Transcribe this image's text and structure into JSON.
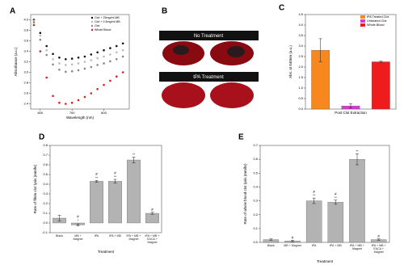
{
  "chart_data": [
    {
      "type": "scatter",
      "panel_label": "A",
      "x_label": "Wavelength (nm)",
      "y_label": "Absorbance (a.u.)",
      "x": [
        580,
        600,
        620,
        640,
        660,
        680,
        700,
        720,
        740,
        760,
        780,
        800,
        820,
        840,
        860
      ],
      "series": [
        {
          "name": "Clot + 25mg/ml MB",
          "color": "#111111",
          "values": [
            4.0,
            3.75,
            3.5,
            3.35,
            3.28,
            3.25,
            3.26,
            3.28,
            3.3,
            3.34,
            3.38,
            3.42,
            3.46,
            3.5,
            3.55
          ]
        },
        {
          "name": "Clot + 2.5mg/ml MB",
          "color": "#bbbbbb",
          "values": [
            3.98,
            3.7,
            3.42,
            3.25,
            3.17,
            3.14,
            3.15,
            3.17,
            3.2,
            3.23,
            3.27,
            3.3,
            3.34,
            3.38,
            3.42
          ]
        },
        {
          "name": "Clot",
          "color": "#888888",
          "values": [
            3.95,
            3.62,
            3.33,
            3.15,
            3.05,
            3.01,
            3.02,
            3.04,
            3.07,
            3.1,
            3.14,
            3.17,
            3.21,
            3.25,
            3.3
          ]
        },
        {
          "name": "Whole Blood",
          "color": "#d42020",
          "values": [
            3.9,
            3.4,
            2.9,
            2.55,
            2.42,
            2.4,
            2.42,
            2.47,
            2.53,
            2.6,
            2.68,
            2.76,
            2.84,
            2.92,
            3.0
          ]
        }
      ],
      "xlim": [
        570,
        880
      ],
      "xticks": [
        600,
        700,
        800
      ],
      "ylim": [
        2.3,
        4.1
      ],
      "yticks": [
        2.4,
        2.6,
        2.8,
        {
          "value": 3,
          "label": "3.0"
        },
        3.2,
        3.4,
        3.6,
        3.8,
        {
          "value": 4,
          "label": "4.0"
        }
      ]
    },
    {
      "type": "bar",
      "panel_label": "C",
      "x_label": "Post Clot Extraction",
      "y_label": "Abs. at 640nm (a.u.)",
      "series": [
        {
          "name": "tPA Treated Clot",
          "color": "#f7881f",
          "values": [
            2.8
          ],
          "errors": [
            0.55
          ]
        },
        {
          "name": "Untreated Clot",
          "color": "#d63ad6",
          "values": [
            0.15
          ],
          "errors": [
            0.1
          ]
        },
        {
          "name": "Whole Blood",
          "color": "#ee1c1c",
          "values": [
            2.25
          ],
          "errors": [
            0.03
          ]
        }
      ],
      "ylim": [
        0,
        4.5
      ],
      "yticks": [
        {
          "value": 0,
          "label": "0.0"
        },
        0.5,
        {
          "value": 1,
          "label": "1.0"
        },
        1.5,
        {
          "value": 2,
          "label": "2.0"
        },
        2.5,
        {
          "value": 3,
          "label": "3.0"
        },
        3.5,
        {
          "value": 4,
          "label": "4.0"
        },
        4.5
      ]
    },
    {
      "type": "bar",
      "panel_label": "D",
      "x_label": "Treatment",
      "y_label": "Rate of fibrin clot lysis (mm/hr)",
      "categories": [
        "Blank",
        "MB + Magnet",
        "tPA",
        "tPA + MB",
        "tPA + MB + Magnet",
        "tPA + MB + EACA + Magnet"
      ],
      "series": [
        {
          "color": "#b3b3b3",
          "values": [
            0.05,
            -0.02,
            0.43,
            0.43,
            0.65,
            0.1
          ],
          "errors": [
            0.03,
            0.01,
            0.01,
            0.02,
            0.03,
            0.01
          ]
        }
      ],
      "sig_top": [
        null,
        "#",
        "#",
        "#",
        null,
        "#"
      ],
      "sig_bottom": [
        null,
        "*",
        "**",
        "**",
        "**",
        null
      ],
      "ylim": [
        -0.1,
        0.8
      ],
      "yticks": [
        -0.1,
        {
          "value": 0,
          "label": "0.0"
        },
        0.1,
        0.2,
        0.3,
        0.4,
        0.5,
        0.6,
        0.7,
        0.8
      ]
    },
    {
      "type": "bar",
      "panel_label": "E",
      "x_label": "Treatment",
      "y_label": "Rate of whole blood clot lysis (mm/hr)",
      "categories": [
        "Blank",
        "MB + Magnet",
        "tPA",
        "tPA + MB",
        "tPA + MB + Magnet",
        "tPA + MB + EACA + Magnet"
      ],
      "series": [
        {
          "color": "#b3b3b3",
          "values": [
            0.02,
            0.01,
            0.3,
            0.29,
            0.6,
            0.02
          ],
          "errors": [
            0.005,
            0.005,
            0.02,
            0.015,
            0.04,
            0.005
          ]
        }
      ],
      "sig_top": [
        null,
        "#",
        "#",
        "#",
        null,
        "#"
      ],
      "sig_bottom": [
        null,
        null,
        "**",
        "**",
        "**",
        null
      ],
      "ylim": [
        0,
        0.7
      ],
      "yticks": [
        {
          "value": 0,
          "label": "0.0"
        },
        0.1,
        0.2,
        0.3,
        0.4,
        0.5,
        0.6,
        0.7
      ]
    }
  ],
  "photo_panel": {
    "panel_label": "B",
    "labels": [
      "No Treatment",
      "tPA Treatment"
    ]
  }
}
